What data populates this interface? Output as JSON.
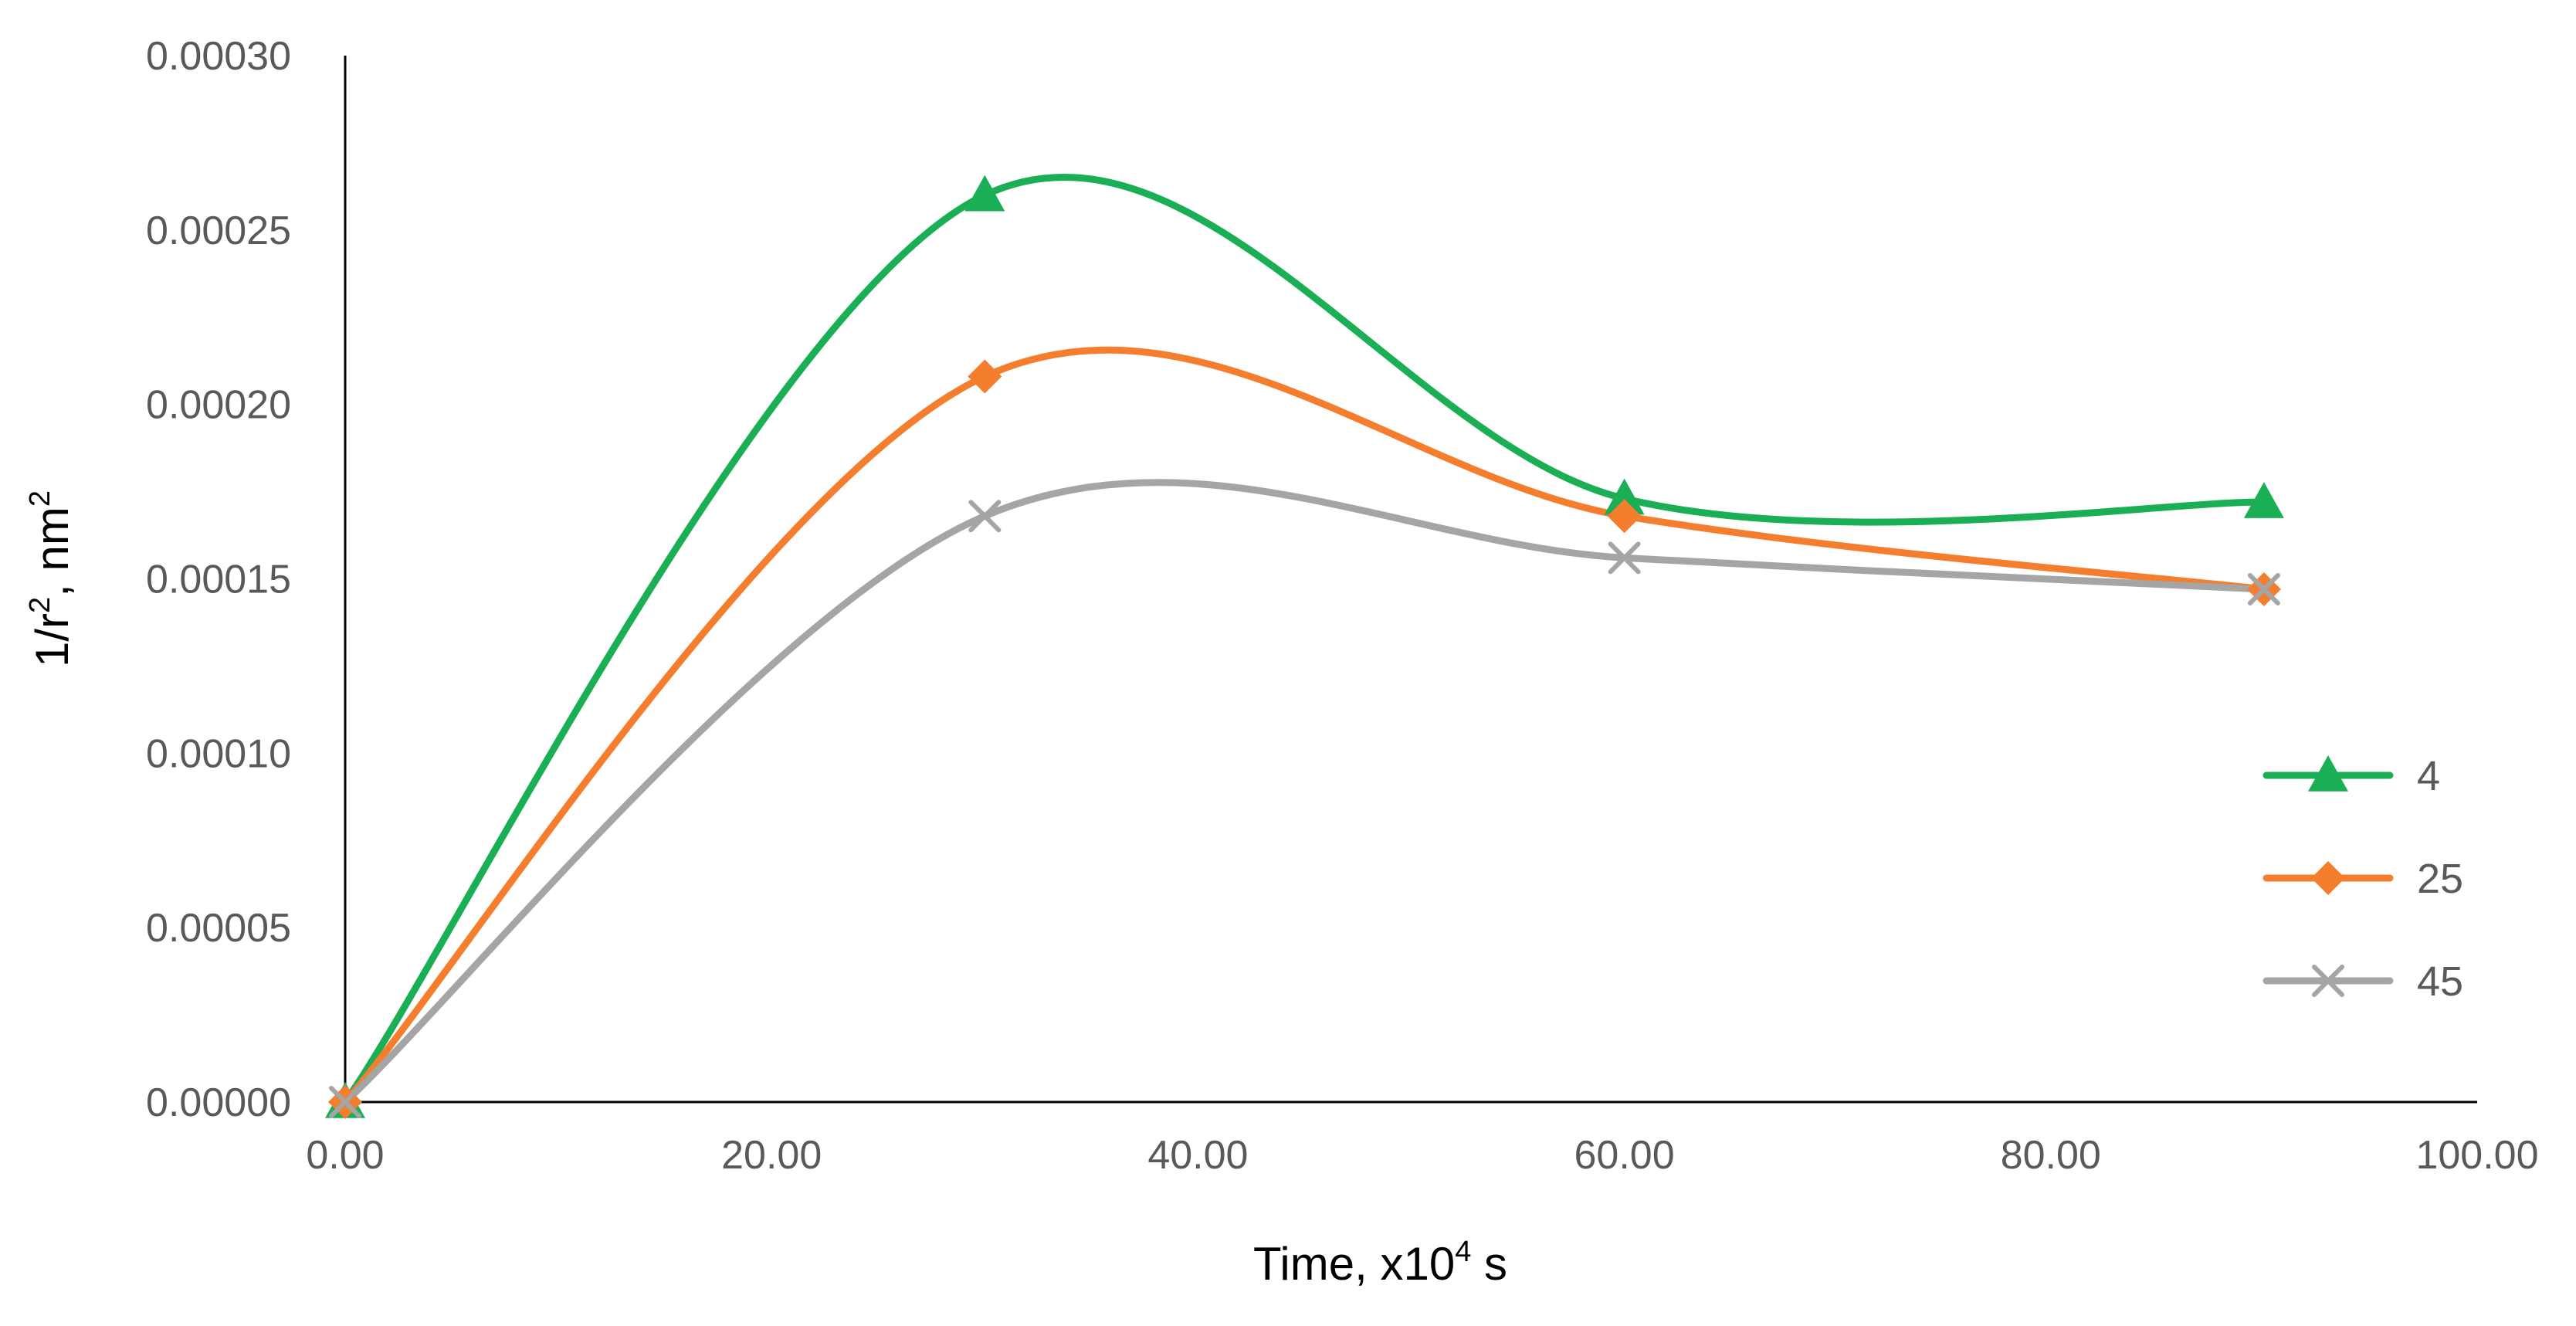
{
  "chart_data": {
    "type": "line",
    "smooth": true,
    "title": "",
    "xlabel": "Time, x10",
    "xlabel_sup": "4",
    "xlabel_suffix": " s",
    "ylabel": "1/r",
    "ylabel_sup": "2",
    "ylabel_suffix": ", nm",
    "ylabel_sup2": "2",
    "xlim": [
      0,
      100
    ],
    "ylim": [
      0,
      0.0003
    ],
    "x_ticks": [
      0,
      20,
      40,
      60,
      80,
      100
    ],
    "x_tick_labels": [
      "0.00",
      "20.00",
      "40.00",
      "60.00",
      "80.00",
      "100.00"
    ],
    "y_ticks": [
      0,
      5e-05,
      0.0001,
      0.00015,
      0.0002,
      0.00025,
      0.0003
    ],
    "y_tick_labels": [
      "0.00000",
      "0.00005",
      "0.00010",
      "0.00015",
      "0.00020",
      "0.00025",
      "0.00030"
    ],
    "grid": false,
    "legend_position": "right",
    "x": [
      0,
      30,
      60,
      90
    ],
    "series": [
      {
        "name": "4",
        "color": "#1aaf54",
        "marker": "triangle",
        "values": [
          0,
          0.00026,
          0.000173,
          0.000172
        ]
      },
      {
        "name": "25",
        "color": "#f47e2e",
        "marker": "diamond",
        "values": [
          0,
          0.000208,
          0.000168,
          0.000147
        ]
      },
      {
        "name": "45",
        "color": "#a5a5a5",
        "marker": "x",
        "values": [
          0,
          0.000168,
          0.000156,
          0.000147
        ]
      }
    ]
  }
}
